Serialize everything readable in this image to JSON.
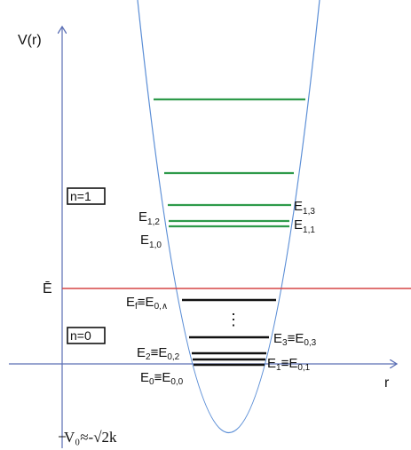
{
  "axes": {
    "y_label": "V(r)",
    "x_label": "r"
  },
  "regions": {
    "upper": "n=1",
    "lower": "n=0"
  },
  "fermi": {
    "label": "Ē",
    "color": "#d64545"
  },
  "bottom_label": "V₀≈-√2k",
  "dots": "⋮",
  "colors": {
    "axis": "#5b6fb5",
    "parabola": "#5b8ed6",
    "green_level": "#2e9a4a",
    "black_level": "#111111"
  },
  "levels": {
    "E13": {
      "main": "E",
      "sub": "1,3"
    },
    "E12": {
      "main": "E",
      "sub": "1,2"
    },
    "E11": {
      "main": "E",
      "sub": "1,1"
    },
    "E10": {
      "main": "E",
      "sub": "1,0"
    },
    "Ef": {
      "main": "E",
      "sub1": "f",
      "eq": "≡E",
      "sub2": "0,∧"
    },
    "E3": {
      "main": "E",
      "sub1": "3",
      "eq": "≡E",
      "sub2": "0,3"
    },
    "E2": {
      "main": "E",
      "sub1": "2",
      "eq": "≡E",
      "sub2": "0,2"
    },
    "E1": {
      "main": "E",
      "sub1": "1",
      "eq": "≡E",
      "sub2": "0,1"
    },
    "E0": {
      "main": "E",
      "sub1": "0",
      "eq": "≡E",
      "sub2": "0,0"
    }
  }
}
